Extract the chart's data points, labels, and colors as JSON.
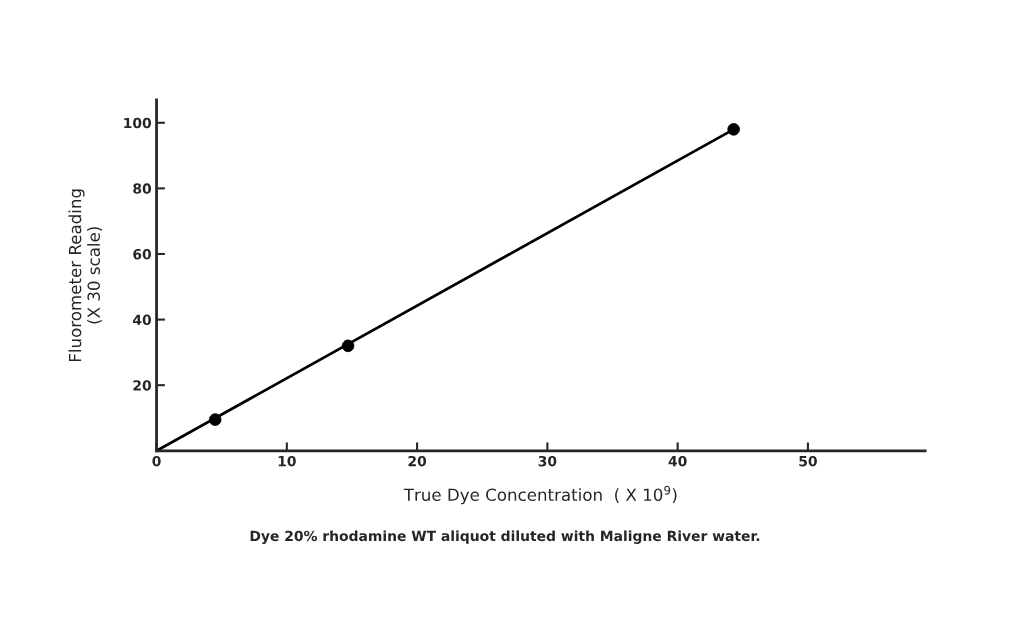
{
  "chart_data": {
    "type": "scatter",
    "xlabel": "True Dye Concentration  ( X 10$^{9}$)",
    "ylabel": "Fluorometer Reading\n(X 30 scale)",
    "annotations": [
      "Dye 20% rhodamine WT aliquot diluted with Maligne River water."
    ],
    "series": [
      {
        "color": "#000000",
        "x": [
          4.5,
          14.7,
          44.3
        ],
        "values": [
          9.5,
          32,
          98
        ],
        "marker": "circle"
      },
      {
        "type": "line",
        "color": "#000000",
        "x": [
          0,
          44.3
        ],
        "values": [
          0,
          98
        ],
        "marker": "none",
        "line_style": "solid"
      }
    ],
    "xlim": [
      0,
      59
    ],
    "ylim": [
      0,
      107
    ],
    "xticks": [
      0,
      10,
      20,
      30,
      40,
      50
    ],
    "yticks": [
      20,
      40,
      60,
      80,
      100
    ],
    "grid": false,
    "legend": false
  }
}
